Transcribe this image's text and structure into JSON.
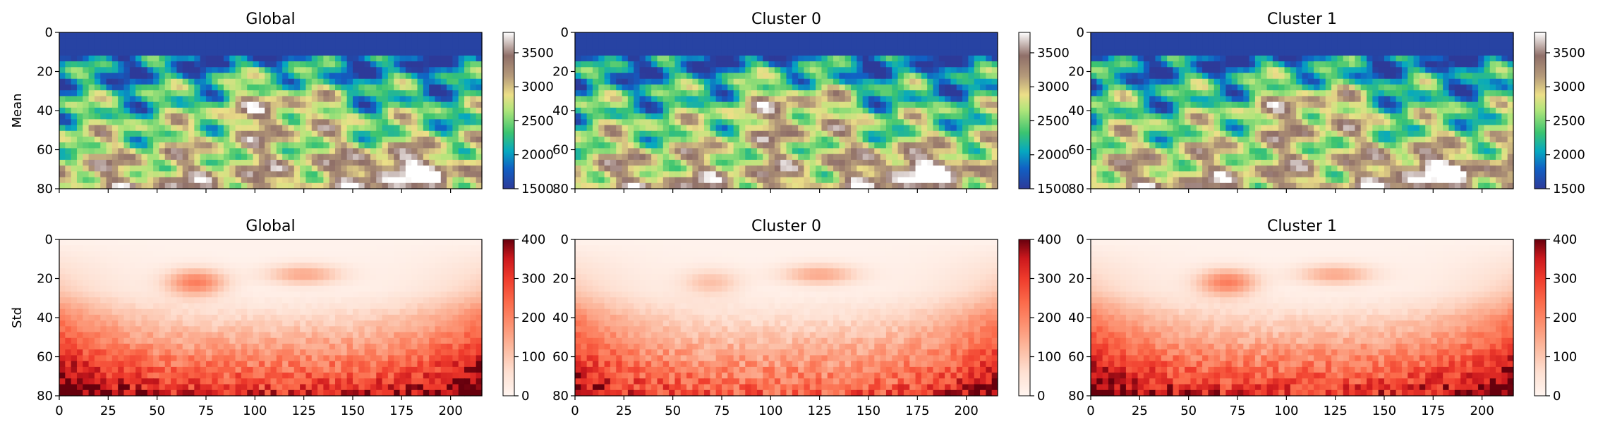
{
  "chart_data": {
    "type": "heatmap",
    "layout": "2 rows x 3 columns",
    "row_labels": [
      "Mean",
      "Std"
    ],
    "column_titles": [
      "Global",
      "Cluster 0",
      "Cluster 1"
    ],
    "x_ticks": [
      0,
      25,
      50,
      75,
      100,
      125,
      150,
      175,
      200
    ],
    "y_ticks": [
      0,
      20,
      40,
      60,
      80
    ],
    "x_range": [
      0,
      216
    ],
    "y_range": [
      0,
      80
    ],
    "rows": [
      {
        "label": "Mean",
        "colormap": "terrain",
        "colorbar_range": [
          1500,
          3800
        ],
        "colorbar_ticks": [
          1500,
          2000,
          2500,
          3000,
          3500
        ],
        "panels": [
          {
            "title": "Global"
          },
          {
            "title": "Cluster 0"
          },
          {
            "title": "Cluster 1"
          }
        ]
      },
      {
        "label": "Std",
        "colormap": "Reds",
        "colorbar_range": [
          0,
          400
        ],
        "colorbar_ticks": [
          0,
          100,
          200,
          300,
          400
        ],
        "panels": [
          {
            "title": "Global"
          },
          {
            "title": "Cluster 0"
          },
          {
            "title": "Cluster 1"
          }
        ]
      }
    ]
  }
}
